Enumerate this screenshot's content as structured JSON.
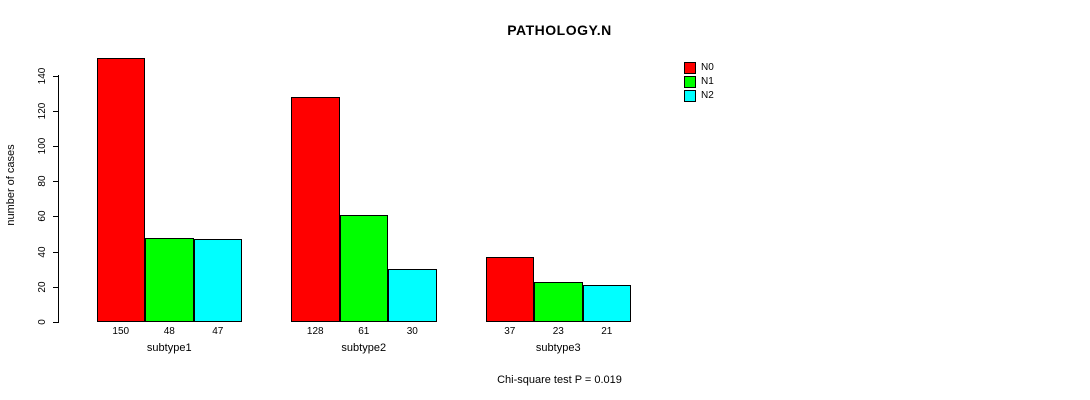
{
  "chart_data": {
    "type": "bar",
    "title": "PATHOLOGY.N",
    "xlabel": "",
    "ylabel": "number of cases",
    "categories": [
      "subtype1",
      "subtype2",
      "subtype3"
    ],
    "series": [
      {
        "name": "N0",
        "color": "#ff0000",
        "values": [
          150,
          128,
          37
        ]
      },
      {
        "name": "N1",
        "color": "#00ff00",
        "values": [
          48,
          61,
          23
        ]
      },
      {
        "name": "N2",
        "color": "#00ffff",
        "values": [
          47,
          30,
          21
        ]
      }
    ],
    "ylim": [
      0,
      150
    ],
    "yticks": [
      0,
      20,
      40,
      60,
      80,
      100,
      120,
      140
    ],
    "bar_value_labels": [
      [
        150,
        48,
        47
      ],
      [
        128,
        61,
        30
      ],
      [
        37,
        23,
        21
      ]
    ],
    "grid": false,
    "legend_position": "top-right",
    "annotation": "Chi-square test P = 0.019"
  }
}
